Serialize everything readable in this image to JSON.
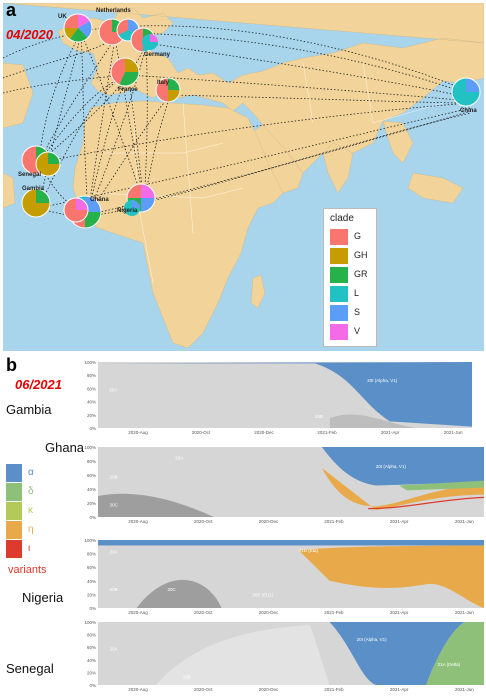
{
  "panel_a": {
    "letter": "a",
    "date": "04/2020",
    "countries": [
      "UK",
      "Netherlands",
      "Germany",
      "France",
      "Italy",
      "China",
      "Senegal",
      "Gambia",
      "Ghana",
      "Nigeria"
    ],
    "legend": {
      "title": "clade",
      "items": [
        {
          "label": "G",
          "color": "#f8766d"
        },
        {
          "label": "GH",
          "color": "#c59d00"
        },
        {
          "label": "GR",
          "color": "#27b14a"
        },
        {
          "label": "L",
          "color": "#22c1c3"
        },
        {
          "label": "S",
          "color": "#5b9df7"
        },
        {
          "label": "V",
          "color": "#f46be7"
        }
      ]
    }
  },
  "panel_b": {
    "letter": "b",
    "date": "06/2021",
    "x_ticks": [
      "2020-Aug",
      "2020-Oct",
      "2020-Dec",
      "2021-Feb",
      "2021-Apr",
      "2021-Jun"
    ],
    "y_ticks": [
      "100%",
      "80%",
      "60%",
      "40%",
      "20%",
      "0%"
    ],
    "variants_legend": {
      "title": "variants",
      "items": [
        {
          "symbol": "α",
          "color": "#5b8fc7"
        },
        {
          "symbol": "δ",
          "color": "#8fc07a"
        },
        {
          "symbol": "κ",
          "color": "#b3c95a"
        },
        {
          "symbol": "η",
          "color": "#e8a94a"
        },
        {
          "symbol": "ι",
          "color": "#dd3b2e"
        }
      ]
    },
    "strips": [
      {
        "name": "Gambia",
        "labels": [
          "20A",
          "20I (Alpha, V1)",
          "20B"
        ]
      },
      {
        "name": "Ghana",
        "labels": [
          "20A",
          "20B",
          "20C",
          "20I (Alpha, V1)"
        ]
      },
      {
        "name": "Nigeria",
        "labels": [
          "20A",
          "21D (Eta)",
          "20B",
          "20C",
          "20E (EU1)"
        ]
      },
      {
        "name": "Senegal",
        "labels": [
          "20A",
          "20B",
          "20I (Alpha, V1)",
          "21A (Delta)"
        ]
      }
    ]
  }
}
